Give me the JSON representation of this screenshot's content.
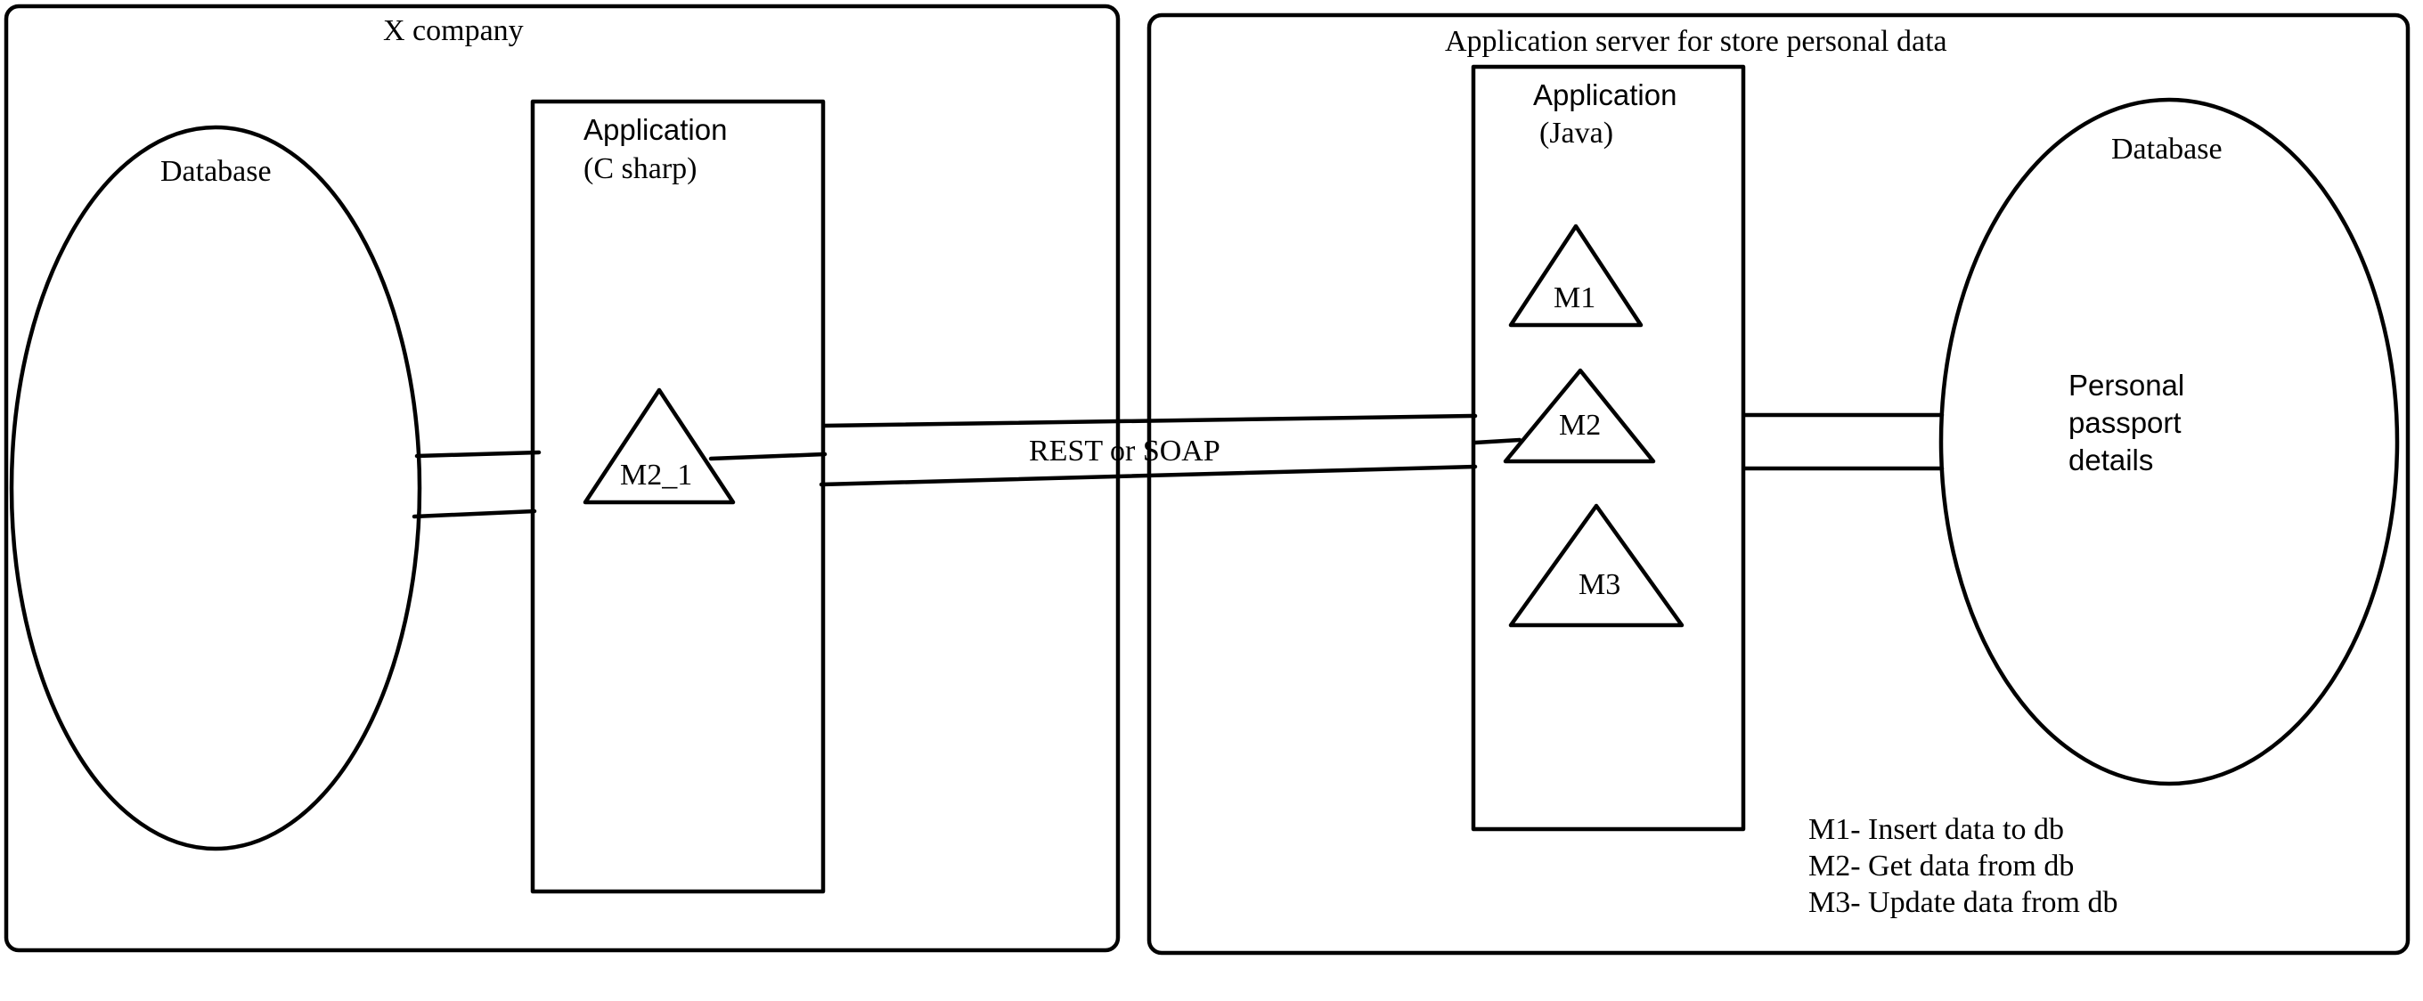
{
  "left_group": {
    "title": "X company",
    "database_label": "Database",
    "application_label_line1": "Application",
    "application_label_line2": "(C sharp)",
    "method": "M2_1"
  },
  "right_group": {
    "title": "Application server for store personal data",
    "application_label_line1": "Application",
    "application_label_line2": "(Java)",
    "methods": [
      "M1",
      "M2",
      "M3"
    ],
    "database_label": "Database",
    "database_content": [
      "Personal",
      "passport",
      "details"
    ]
  },
  "connection_label": "REST or SOAP",
  "legend": [
    "M1- Insert data to db",
    "M2- Get data from db",
    "M3- Update data from db"
  ]
}
